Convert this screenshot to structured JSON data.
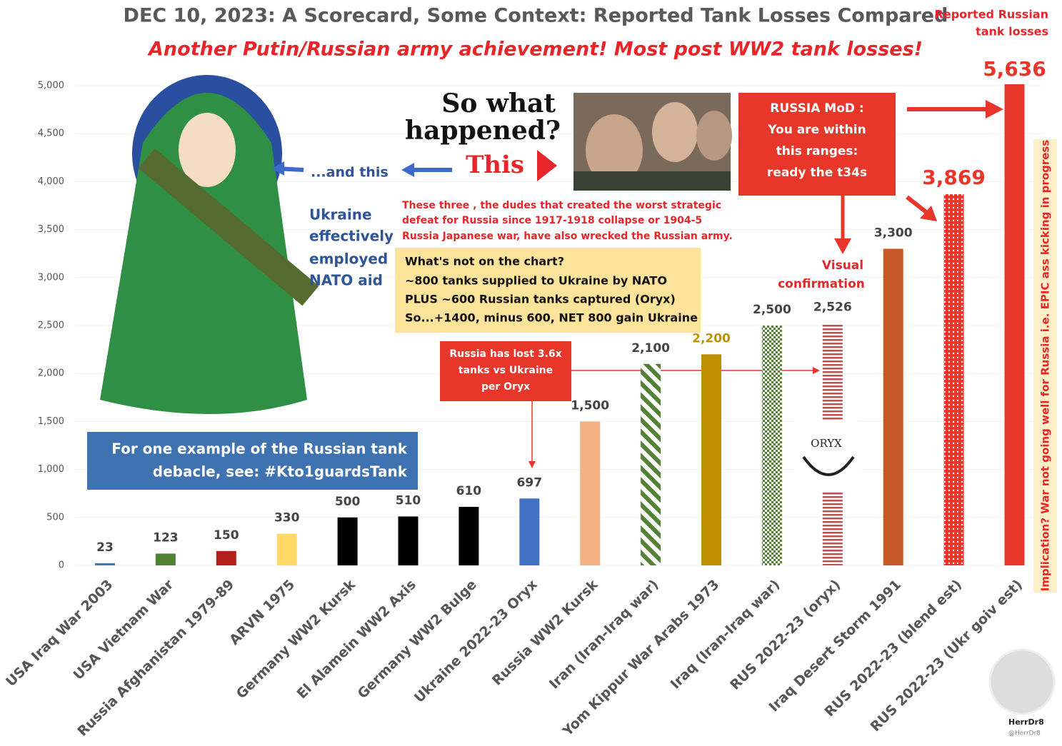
{
  "chart_data": {
    "type": "bar",
    "title": "DEC 10, 2023: A Scorecard, Some Context: Reported Tank Losses Compared",
    "subtitle": "Another Putin/Russian army achievement! Most post WW2 tank losses!",
    "categories": [
      "USA Iraq War 2003",
      "USA Vietnam War",
      "Russia Afghanistan 1979-89",
      "ARVN 1975",
      "Germany WW2 Kursk",
      "El Alamein WW2 Axis",
      "Germany WW2 Bulge",
      "Ukraine 2022-23 Oryx",
      "Russia WW2 Kursk",
      "Iran (Iran-Iraq war)",
      "Yom Kippur War Arabs 1973",
      "Iraq (Iran-Iraq war)",
      "RUS 2022-23 (oryx)",
      "Iraq Desert Storm 1991",
      "RUS 2022-23 (blend est)",
      "RUS 2022-23 (Ukr goiv est)"
    ],
    "values": [
      23,
      123,
      150,
      330,
      500,
      510,
      610,
      697,
      1500,
      2100,
      2200,
      2500,
      2526,
      3300,
      3869,
      5636
    ],
    "value_labels": [
      "23",
      "123",
      "150",
      "330",
      "500",
      "510",
      "610",
      "697",
      "1,500",
      "2,100",
      "2,200",
      "2,500",
      "2,526",
      "3,300",
      "3,869",
      "5,636"
    ],
    "colors": [
      "#4472c4",
      "#548235",
      "#b3201c",
      "#ffd966",
      "#000000",
      "#000000",
      "#000000",
      "#4472c4",
      "#f4b183",
      "#548235",
      "#bf9000",
      "#548235",
      "#c0504d",
      "#c55a28",
      "#e8362a",
      "#e8362a"
    ],
    "patterns": [
      "solid",
      "solid",
      "solid",
      "solid",
      "solid",
      "solid",
      "solid",
      "solid",
      "solid",
      "diagonal",
      "solid",
      "checker",
      "hstripe",
      "solid",
      "dots",
      "solid"
    ],
    "value_label_colors": [
      "#444444",
      "#444444",
      "#444444",
      "#444444",
      "#444444",
      "#444444",
      "#444444",
      "#444444",
      "#444444",
      "#444444",
      "#bf9000",
      "#444444",
      "#444444",
      "#444444",
      "#e8362a",
      "#e8362a"
    ],
    "ylim": [
      0,
      5000
    ],
    "yticks": [
      0,
      500,
      {
        "value": 1000,
        "label": "1,000"
      },
      {
        "value": 1500,
        "label": "1,500"
      },
      {
        "value": 2000,
        "label": "2,000"
      },
      {
        "value": 2500,
        "label": "2,500"
      },
      {
        "value": 3000,
        "label": "3,000"
      },
      {
        "value": 3500,
        "label": "3,500"
      },
      {
        "value": 4000,
        "label": "4,000"
      },
      {
        "value": 4500,
        "label": "4,500"
      },
      {
        "value": 5000,
        "label": "5,000"
      }
    ],
    "grid": true,
    "annotations": {
      "top_right": [
        "Reported Russian",
        "tank losses"
      ],
      "so_what": [
        "So what",
        "happened?"
      ],
      "this": "This",
      "and_this": "...and this",
      "ukraine": [
        "Ukraine",
        "effectively",
        "employed",
        "NATO aid"
      ],
      "three": [
        "These three , the dudes that created the worst strategic",
        "defeat for Russia since 1917-1918 collapse or 1904-5",
        "Russia Japanese war, have also wrecked the Russian army."
      ],
      "not_on_chart": [
        "What's not on the chart?",
        "~800 tanks supplied to Ukraine by NATO",
        "PLUS ~600 Russian tanks captured (Oryx)",
        "So...+1400, minus 600, NET 800 gain Ukraine"
      ],
      "mod": [
        "RUSSIA MoD :",
        "You are within",
        "this ranges:",
        "ready the t34s"
      ],
      "visual": [
        "Visual",
        "confirmation"
      ],
      "lost": [
        "Russia has lost 3.6x",
        "tanks vs Ukraine",
        "per Oryx"
      ],
      "example": [
        "For one example of the Russian tank",
        "debacle, see: #Kto1guardsTank"
      ],
      "implication": "Implication? War not going well for Russia i.e. EPIC ass kicking in progress",
      "oryx": "ORYX",
      "handle": [
        "HerrDr8",
        "@HerrDr8"
      ]
    }
  }
}
